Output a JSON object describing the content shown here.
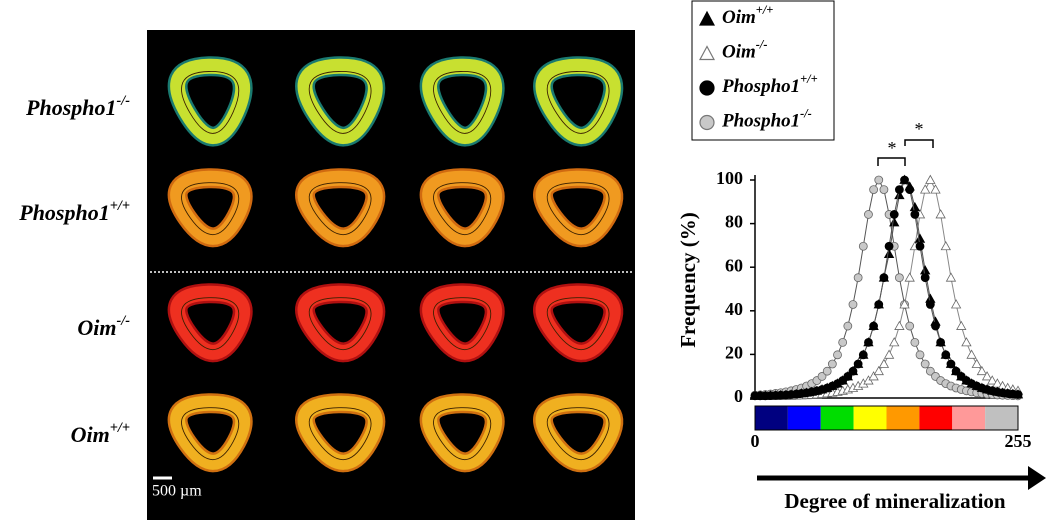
{
  "image_panel": {
    "row_labels": [
      "Phospho1-/-",
      "Phospho1+/+",
      "Oim-/-",
      "Oim+/+"
    ],
    "scale_bar": "500 µm"
  },
  "chart_data": {
    "type": "line",
    "x": [
      0,
      5,
      10,
      15,
      20,
      25,
      30,
      35,
      40,
      45,
      50,
      55,
      60,
      65,
      70,
      75,
      80,
      85,
      90,
      95,
      100,
      105,
      110,
      115,
      120,
      125,
      130,
      135,
      140,
      145,
      150,
      155,
      160,
      165,
      170,
      175,
      180,
      185,
      190,
      195,
      200,
      205,
      210,
      215,
      220,
      225,
      230,
      235,
      240,
      245,
      250,
      255
    ],
    "series": [
      {
        "name": "Oim+/+",
        "color": "#000000",
        "marker": "triangle",
        "filled": true,
        "values": [
          1.0,
          1.0,
          1.0,
          1.1,
          1.2,
          1.3,
          1.4,
          1.6,
          1.8,
          2.1,
          2.4,
          2.8,
          3.3,
          3.9,
          4.6,
          5.5,
          6.6,
          8.0,
          9.9,
          12.3,
          15.6,
          19.8,
          25.5,
          33.0,
          42.9,
          55.2,
          66.0,
          80.5,
          93.0,
          100,
          97.0,
          87.5,
          73.0,
          58.5,
          45.5,
          35.0,
          25.5,
          19.8,
          15.6,
          12.3,
          9.9,
          8.0,
          6.6,
          5.5,
          4.6,
          3.9,
          3.3,
          2.8,
          2.4,
          2.1,
          1.8,
          1.6
        ]
      },
      {
        "name": "Oim-/-",
        "color": "#a0a0a0",
        "marker": "triangle",
        "filled": false,
        "values": [
          0.9,
          0.9,
          0.9,
          0.9,
          0.9,
          1.0,
          1.0,
          1.0,
          1.1,
          1.2,
          1.3,
          1.4,
          1.6,
          1.8,
          2.1,
          2.4,
          2.8,
          3.3,
          3.9,
          4.6,
          5.5,
          6.6,
          8.0,
          9.9,
          12.3,
          15.6,
          19.8,
          25.5,
          33.0,
          42.9,
          55.2,
          69.6,
          84.2,
          95.6,
          100,
          95.6,
          84.2,
          69.6,
          55.2,
          42.9,
          33.0,
          25.5,
          19.8,
          15.6,
          12.3,
          9.9,
          8.0,
          6.6,
          5.5,
          4.6,
          3.9,
          3.3
        ]
      },
      {
        "name": "Phospho1+/+",
        "color": "#000000",
        "marker": "circle",
        "filled": true,
        "values": [
          1.0,
          1.0,
          1.0,
          1.1,
          1.2,
          1.3,
          1.4,
          1.6,
          1.8,
          2.1,
          2.4,
          2.8,
          3.3,
          3.9,
          4.6,
          5.5,
          6.6,
          8.0,
          9.9,
          12.3,
          15.6,
          19.8,
          25.5,
          33.0,
          42.9,
          55.2,
          69.6,
          84.2,
          95.6,
          100,
          95.6,
          84.2,
          69.6,
          55.2,
          42.9,
          33.0,
          25.5,
          19.8,
          15.6,
          12.3,
          9.9,
          8.0,
          6.6,
          5.5,
          4.6,
          3.9,
          3.3,
          2.8,
          2.4,
          2.1,
          1.8,
          1.6
        ]
      },
      {
        "name": "Phospho1-/-",
        "color": "#c8c8c8",
        "marker": "circle",
        "filled": true,
        "values": [
          1.3,
          1.4,
          1.6,
          1.8,
          2.1,
          2.4,
          2.8,
          3.3,
          3.9,
          4.6,
          5.5,
          6.6,
          8.0,
          9.9,
          12.3,
          15.6,
          19.8,
          25.5,
          33.0,
          42.9,
          55.2,
          69.6,
          84.2,
          95.6,
          100,
          95.6,
          84.2,
          69.6,
          55.2,
          42.9,
          33.0,
          25.5,
          19.8,
          15.6,
          12.3,
          9.9,
          8.0,
          6.6,
          5.5,
          4.6,
          3.9,
          3.3,
          2.8,
          2.4,
          2.1,
          1.8,
          1.6,
          1.4,
          1.3,
          1.2,
          1.1,
          1.0
        ]
      }
    ],
    "xlim": [
      0,
      255
    ],
    "xticks": [
      0,
      255
    ],
    "ylim": [
      0,
      100
    ],
    "yticks": [
      0,
      20,
      40,
      60,
      80,
      100
    ],
    "ylabel": "Frequency (%)",
    "xlabel": "Degree of mineralization",
    "annotations": [
      "*",
      "*"
    ],
    "colorbar": [
      "#000080",
      "#0000ff",
      "#00dd00",
      "#ffff00",
      "#ff9900",
      "#ff0000",
      "#ff9999",
      "#c0c0c0"
    ],
    "legend": "top-left"
  }
}
